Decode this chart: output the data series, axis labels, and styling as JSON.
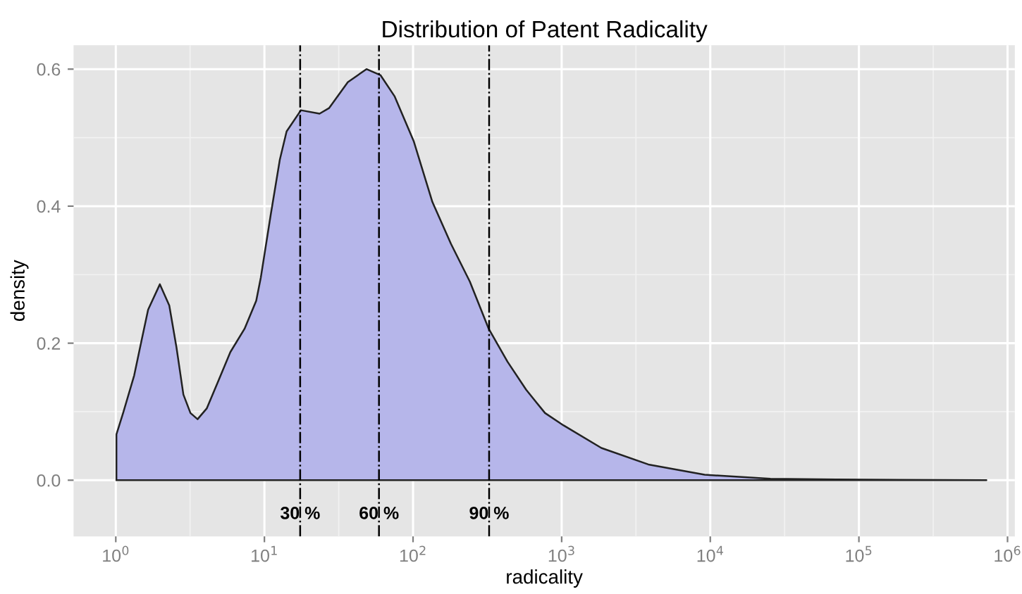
{
  "chart_data": {
    "type": "area",
    "title": "Distribution of Patent Radicality",
    "xlabel": "radicality",
    "ylabel": "density",
    "log": "x",
    "grid": true,
    "xlim": [
      0.52,
      1120000
    ],
    "ylim": [
      -0.082,
      0.635
    ],
    "xticks": [
      {
        "value": 1,
        "label": "10$^{0}$"
      },
      {
        "value": 10,
        "label": "10$^{1}$"
      },
      {
        "value": 100,
        "label": "10$^{2}$"
      },
      {
        "value": 1000,
        "label": "10$^{3}$"
      },
      {
        "value": 10000,
        "label": "10$^{4}$"
      },
      {
        "value": 100000,
        "label": "10$^{5}$"
      },
      {
        "value": 1000000,
        "label": "10$^{6}$"
      }
    ],
    "yticks": [
      {
        "value": 0,
        "label": "0.0"
      },
      {
        "value": 0.2,
        "label": "0.2"
      },
      {
        "value": 0.4,
        "label": "0.4"
      },
      {
        "value": 0.6,
        "label": "0.6"
      }
    ],
    "x": [
      1.01,
      1.12,
      1.33,
      1.48,
      1.65,
      1.98,
      2.29,
      2.56,
      2.85,
      3.18,
      3.55,
      4.1,
      4.92,
      5.9,
      7.35,
      8.81,
      9.46,
      11.0,
      12.7,
      14.1,
      17.6,
      23.5,
      27.2,
      36.4,
      48.6,
      60.5,
      75.3,
      101,
      135,
      180,
      241,
      323,
      432,
      577,
      773,
      1030,
      1850,
      3830,
      9160,
      25400,
      70300,
      721000
    ],
    "series": [
      {
        "color": "#b6b6ea",
        "values": [
          0.067,
          0.098,
          0.153,
          0.201,
          0.249,
          0.286,
          0.255,
          0.194,
          0.125,
          0.098,
          0.089,
          0.105,
          0.146,
          0.187,
          0.221,
          0.262,
          0.296,
          0.386,
          0.468,
          0.509,
          0.54,
          0.535,
          0.543,
          0.581,
          0.6,
          0.591,
          0.56,
          0.495,
          0.406,
          0.345,
          0.29,
          0.221,
          0.173,
          0.132,
          0.098,
          0.08,
          0.047,
          0.023,
          0.008,
          0.002,
          0.001,
          0.0
        ]
      }
    ],
    "ref_lines": [
      {
        "axis": "x",
        "value": 17.4,
        "color": "#000000",
        "line_style": "dashdot"
      },
      {
        "axis": "x",
        "value": 59,
        "color": "#000000",
        "line_style": "dashdot"
      },
      {
        "axis": "x",
        "value": 325,
        "color": "#000000",
        "line_style": "dashdot"
      }
    ],
    "annotations": [
      {
        "text": "30 %",
        "x": 17.4,
        "y": -0.05
      },
      {
        "text": "60 %",
        "x": 59,
        "y": -0.05
      },
      {
        "text": "90 %",
        "x": 325,
        "y": -0.05
      }
    ]
  }
}
